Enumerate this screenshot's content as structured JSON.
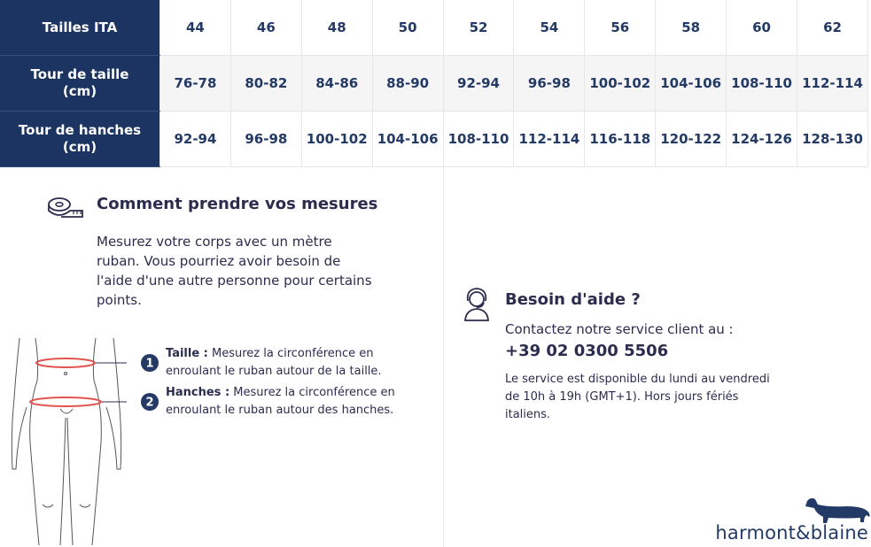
{
  "table": {
    "row_headers": [
      "Tailles ITA",
      "Tour de taille (cm)",
      "Tour de hanches (cm)"
    ],
    "rows": [
      [
        "44",
        "46",
        "48",
        "50",
        "52",
        "54",
        "56",
        "58",
        "60",
        "62"
      ],
      [
        "76-78",
        "80-82",
        "84-86",
        "88-90",
        "92-94",
        "96-98",
        "100-102",
        "104-106",
        "108-110",
        "112-114"
      ],
      [
        "92-94",
        "96-98",
        "100-102",
        "104-106",
        "108-110",
        "112-114",
        "116-118",
        "120-122",
        "124-126",
        "128-130"
      ]
    ]
  },
  "measure": {
    "title": "Comment prendre vos mesures",
    "paragraph_lines": [
      "Mesurez votre corps avec un mètre",
      "ruban. Vous pourriez avoir besoin de",
      "l'aide d'une autre personne pour certains",
      "points."
    ],
    "items": [
      {
        "number": "1",
        "label": "Taille :",
        "text": "Mesurez la circonférence en enroulant le ruban autour de la taille."
      },
      {
        "number": "2",
        "label": "Hanches :",
        "text": "Mesurez la circonférence en enroulant le ruban autour des hanches."
      }
    ]
  },
  "help": {
    "title": "Besoin d'aide ?",
    "intro": "Contactez notre service client au :",
    "phone": "+39 02 0300 5506",
    "hours": "Le service est disponible du lundi au vendredi de 10h à 19h (GMT+1). Hors jours fériés italiens."
  },
  "brand": "harmont&blaine"
}
